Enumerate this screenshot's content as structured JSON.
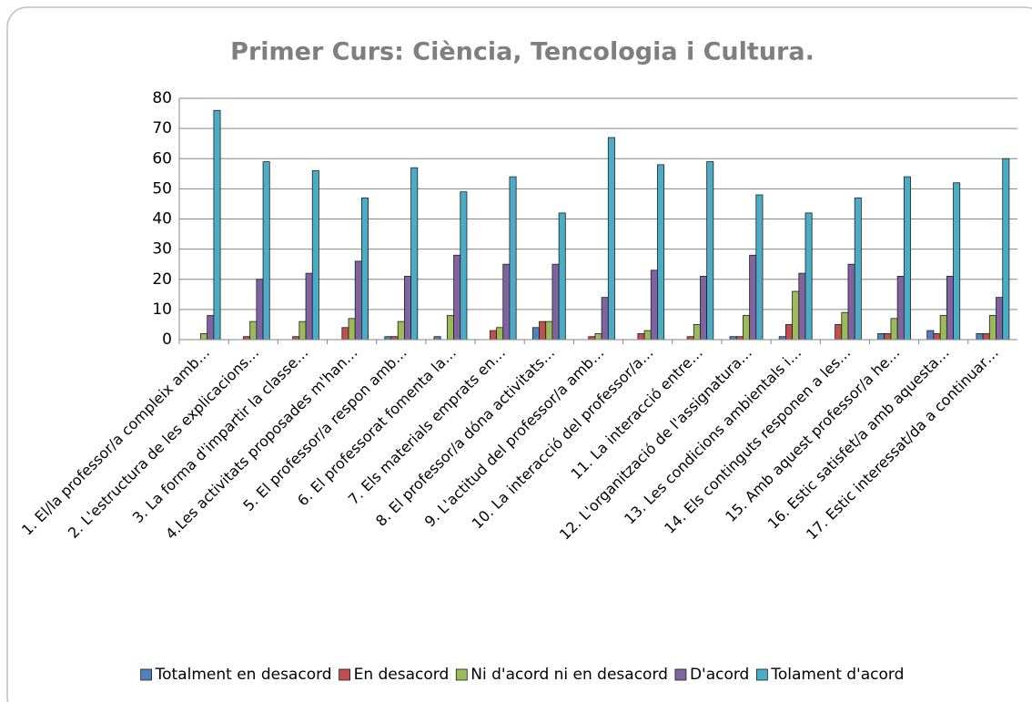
{
  "chart_data": {
    "type": "bar",
    "title": "Primer Curs: Ciència, Tencologia i Cultura.",
    "categories": [
      "1. El/la professor/a compleix amb…",
      "2. L'estructura de les explicacions…",
      "3. La forma d'impartir la classe…",
      "4.Les activitats proposades m'han…",
      "5. El professor/a respon amb…",
      "6. El professorat fomenta la…",
      "7. Els materials emprats en…",
      "8. El professor/a dóna activitats…",
      "9. L'actitud del professor/a amb…",
      "10. La interacció del professor/a…",
      "11. La interacció entre…",
      "12. L'organització de l'assignatura…",
      "13. Les condicions ambientals i…",
      "14. Els continguts responen a les…",
      "15. Amb aquest professor/a he…",
      "16. Estic satisfet/a amb aquesta…",
      "17. Estic interessat/da a continuar…"
    ],
    "series": [
      {
        "name": "Totalment en desacord",
        "color": "#4f81bd",
        "values": [
          0,
          0,
          0,
          0,
          1,
          1,
          0,
          4,
          0,
          0,
          0,
          1,
          1,
          0,
          2,
          3,
          2
        ]
      },
      {
        "name": "En desacord",
        "color": "#c0504d",
        "values": [
          0,
          1,
          1,
          4,
          1,
          0,
          3,
          6,
          1,
          2,
          1,
          1,
          5,
          5,
          2,
          2,
          2
        ]
      },
      {
        "name": "Ni d'acord ni en desacord",
        "color": "#9bbb59",
        "values": [
          2,
          6,
          6,
          7,
          6,
          8,
          4,
          6,
          2,
          3,
          5,
          8,
          16,
          9,
          7,
          8,
          8
        ]
      },
      {
        "name": "D'acord",
        "color": "#8064a2",
        "values": [
          8,
          20,
          22,
          26,
          21,
          28,
          25,
          25,
          14,
          23,
          21,
          28,
          22,
          25,
          21,
          21,
          14
        ]
      },
      {
        "name": "Tolament d'acord",
        "color": "#4bacc6",
        "values": [
          76,
          59,
          56,
          47,
          57,
          49,
          54,
          42,
          67,
          58,
          59,
          48,
          42,
          47,
          54,
          52,
          60
        ]
      }
    ],
    "ylim": [
      0,
      80
    ],
    "yticks": [
      0,
      10,
      20,
      30,
      40,
      50,
      60,
      70,
      80
    ],
    "grid": true,
    "legend": "bottom"
  }
}
